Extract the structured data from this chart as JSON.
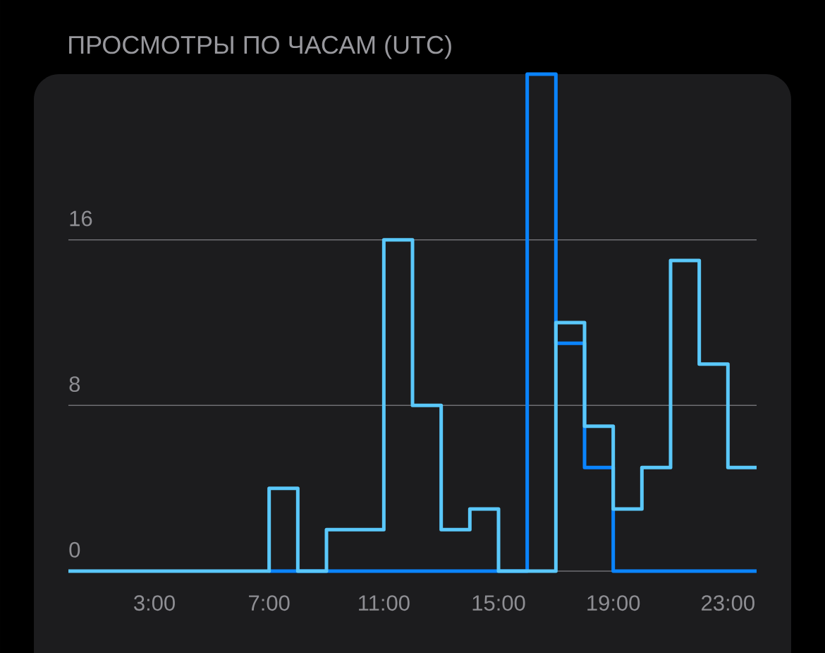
{
  "chart_data": {
    "type": "step",
    "title": "ПРОСМОТРЫ ПО ЧАСАМ (UTC)",
    "x": [
      0,
      1,
      2,
      3,
      4,
      5,
      6,
      7,
      8,
      9,
      10,
      11,
      12,
      13,
      14,
      15,
      16,
      17,
      18,
      19,
      20,
      21,
      22,
      23,
      24
    ],
    "series": [
      {
        "color": "#0a84ff",
        "values": [
          null,
          null,
          null,
          null,
          null,
          null,
          null,
          0,
          0,
          0,
          0,
          0,
          0,
          0,
          0,
          0,
          24,
          11,
          5,
          0,
          0,
          0,
          0,
          0,
          0
        ]
      },
      {
        "color": "#5ac8fa",
        "values": [
          0,
          0,
          0,
          0,
          0,
          0,
          0,
          4,
          0,
          2,
          2,
          16,
          8,
          2,
          3,
          0,
          0,
          12,
          7,
          3,
          5,
          15,
          10,
          5,
          5
        ]
      }
    ],
    "xlim": [
      0,
      24
    ],
    "xticks": [
      {
        "value": 3,
        "label": "3:00"
      },
      {
        "value": 7,
        "label": "7:00"
      },
      {
        "value": 11,
        "label": "11:00"
      },
      {
        "value": 15,
        "label": "15:00"
      },
      {
        "value": 19,
        "label": "19:00"
      },
      {
        "value": 23,
        "label": "23:00"
      }
    ],
    "ylim": [
      0,
      24
    ],
    "yticks": [
      0,
      8,
      16
    ],
    "grid": "y",
    "line_style": "solid"
  }
}
